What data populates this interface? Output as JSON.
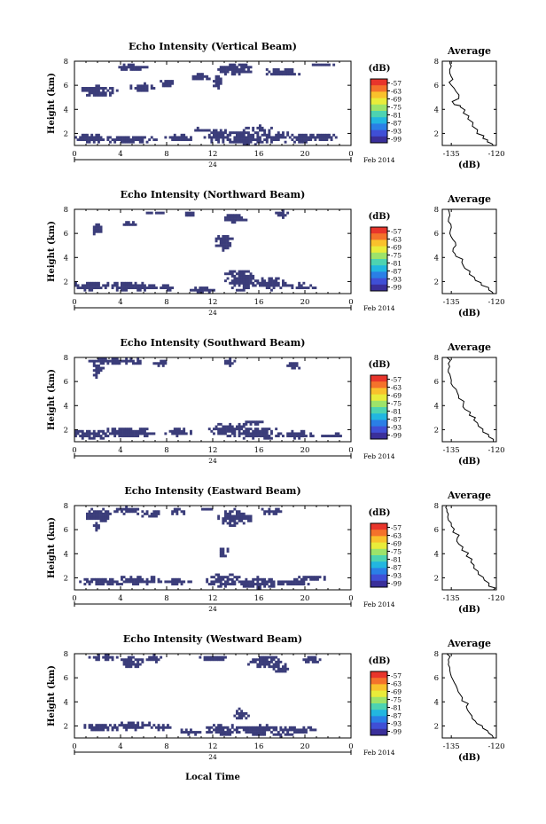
{
  "chart_data": {
    "type": "heatmap",
    "colorbar": {
      "unit": "(dB)",
      "ticks": [
        "-57",
        "-63",
        "-69",
        "-75",
        "-81",
        "-87",
        "-93",
        "-99"
      ],
      "colors": [
        "#e8352b",
        "#f4722b",
        "#f9c12c",
        "#e9ec3a",
        "#9de36a",
        "#4dd3b1",
        "#22b6e0",
        "#2a7fe6",
        "#3f4fd6",
        "#3a2f9a"
      ]
    },
    "fill_color": "#3b3d7a",
    "xticks": [
      "0",
      "4",
      "8",
      "12",
      "16",
      "20",
      "0"
    ],
    "xlim": [
      0,
      24
    ],
    "day_label": "24",
    "date_label": "Feb 2014",
    "xlabel": "Local Time",
    "ylabel": "Height (km)",
    "yticks": [
      "2",
      "4",
      "6",
      "8"
    ],
    "ylim": [
      1,
      8
    ],
    "avg_title": "Average",
    "avg_xlabel": "(dB)",
    "avg_xlim": [
      -138,
      -120
    ],
    "avg_ylim": [
      1,
      8
    ],
    "panels": [
      {
        "title": "Echo Intensity (Vertical Beam)",
        "avg_xticks": [
          "-135",
          "-120"
        ],
        "blobs": [
          [
            2,
            5.5,
            1.7,
            0.45
          ],
          [
            5,
            7.5,
            1.5,
            0.25
          ],
          [
            6,
            5.8,
            1.2,
            0.35
          ],
          [
            8,
            6.2,
            0.6,
            0.3
          ],
          [
            14,
            7.3,
            1.5,
            0.55
          ],
          [
            18,
            7.1,
            1.7,
            0.35
          ],
          [
            11,
            6.7,
            0.9,
            0.3
          ],
          [
            21.5,
            7.7,
            1.2,
            0.18
          ],
          [
            12.4,
            6.3,
            0.4,
            0.6
          ],
          [
            1.5,
            1.6,
            1.8,
            0.35
          ],
          [
            5,
            1.5,
            2.4,
            0.35
          ],
          [
            9,
            1.6,
            1.3,
            0.3
          ],
          [
            12.5,
            1.8,
            1.2,
            0.6
          ],
          [
            14.8,
            1.6,
            1.8,
            0.65
          ],
          [
            17.5,
            1.7,
            1.5,
            0.5
          ],
          [
            19.5,
            1.6,
            1.4,
            0.35
          ],
          [
            21.5,
            1.7,
            1.2,
            0.3
          ],
          [
            16,
            2.4,
            1.2,
            0.25
          ],
          [
            11,
            2.3,
            1,
            0.2
          ]
        ],
        "avg": [
          [
            -121,
            1.0
          ],
          [
            -123,
            1.3
          ],
          [
            -124.5,
            1.6
          ],
          [
            -126.5,
            2
          ],
          [
            -128,
            2.6
          ],
          [
            -129.5,
            3.2
          ],
          [
            -131,
            3.7
          ],
          [
            -132,
            4.2
          ],
          [
            -134,
            4.4
          ],
          [
            -132.5,
            4.9
          ],
          [
            -133.5,
            5.5
          ],
          [
            -135,
            6
          ],
          [
            -134.5,
            6.5
          ],
          [
            -135.5,
            7
          ],
          [
            -135,
            7.6
          ],
          [
            -135.5,
            8
          ]
        ]
      },
      {
        "title": "Echo Intensity (Northward Beam)",
        "avg_xticks": [
          "-135",
          "-120"
        ],
        "blobs": [
          [
            2,
            6.3,
            0.4,
            0.5
          ],
          [
            5,
            6.8,
            0.8,
            0.3
          ],
          [
            7,
            7.7,
            1.2,
            0.18
          ],
          [
            10,
            7.6,
            0.6,
            0.25
          ],
          [
            14,
            7.3,
            1,
            0.4
          ],
          [
            18,
            7.6,
            0.6,
            0.3
          ],
          [
            13,
            5.2,
            0.8,
            0.7
          ],
          [
            1.5,
            1.6,
            2.2,
            0.35
          ],
          [
            5,
            1.6,
            2.5,
            0.35
          ],
          [
            8,
            1.5,
            0.8,
            0.25
          ],
          [
            14.5,
            2.0,
            1.5,
            0.75
          ],
          [
            14.2,
            2.7,
            1.2,
            0.3
          ],
          [
            17,
            1.8,
            1.7,
            0.5
          ],
          [
            19.8,
            1.6,
            1.2,
            0.3
          ],
          [
            11,
            1.3,
            1.2,
            0.25
          ]
        ],
        "avg": [
          [
            -121,
            1.0
          ],
          [
            -122.5,
            1.3
          ],
          [
            -125,
            1.7
          ],
          [
            -127,
            2.1
          ],
          [
            -129,
            2.6
          ],
          [
            -130.5,
            3.1
          ],
          [
            -131.5,
            3.6
          ],
          [
            -133.5,
            4.1
          ],
          [
            -134.5,
            4.5
          ],
          [
            -133.5,
            5
          ],
          [
            -134.5,
            5.5
          ],
          [
            -135.5,
            6
          ],
          [
            -135,
            6.5
          ],
          [
            -136,
            7
          ],
          [
            -135.5,
            7.5
          ],
          [
            -136,
            8
          ]
        ]
      },
      {
        "title": "Echo Intensity (Southward Beam)",
        "avg_xticks": [
          "-135",
          "-120"
        ],
        "blobs": [
          [
            3,
            7.7,
            1.8,
            0.25
          ],
          [
            2,
            7,
            0.5,
            0.8
          ],
          [
            5,
            7.7,
            1.2,
            0.25
          ],
          [
            7.5,
            7.5,
            0.6,
            0.35
          ],
          [
            13.5,
            7.6,
            0.5,
            0.3
          ],
          [
            19,
            7.3,
            0.6,
            0.4
          ],
          [
            1.5,
            1.6,
            1.8,
            0.45
          ],
          [
            4.5,
            1.8,
            2.5,
            0.45
          ],
          [
            9,
            1.8,
            1.2,
            0.35
          ],
          [
            13.5,
            2.0,
            1.8,
            0.55
          ],
          [
            16,
            1.7,
            2.2,
            0.5
          ],
          [
            19.3,
            1.6,
            1.5,
            0.35
          ],
          [
            15.5,
            2.6,
            1.2,
            0.2
          ],
          [
            22.5,
            1.5,
            1.0,
            0.2
          ]
        ],
        "avg": [
          [
            -121,
            1.0
          ],
          [
            -122.5,
            1.4
          ],
          [
            -124.5,
            1.8
          ],
          [
            -126,
            2.3
          ],
          [
            -127.5,
            2.8
          ],
          [
            -129,
            3.2
          ],
          [
            -130.5,
            3.7
          ],
          [
            -131,
            4.1
          ],
          [
            -132.5,
            4.6
          ],
          [
            -133,
            5.1
          ],
          [
            -134.5,
            5.6
          ],
          [
            -135,
            6.1
          ],
          [
            -135.5,
            6.6
          ],
          [
            -136,
            7
          ],
          [
            -136,
            7.5
          ],
          [
            -136.5,
            8
          ]
        ]
      },
      {
        "title": "Echo Intensity (Eastward Beam)",
        "avg_xticks": [
          "-135",
          "-120"
        ],
        "blobs": [
          [
            2,
            7.2,
            1.2,
            0.6
          ],
          [
            4.5,
            7.6,
            1.2,
            0.3
          ],
          [
            6.5,
            7.3,
            1,
            0.35
          ],
          [
            9,
            7.5,
            0.8,
            0.25
          ],
          [
            14,
            7.0,
            1.5,
            0.7
          ],
          [
            17,
            7.5,
            1,
            0.3
          ],
          [
            11.5,
            7.7,
            0.6,
            0.25
          ],
          [
            2,
            6.3,
            0.3,
            0.4
          ],
          [
            13,
            4.1,
            0.5,
            0.4
          ],
          [
            2.5,
            1.7,
            2,
            0.35
          ],
          [
            5.5,
            1.8,
            2.3,
            0.35
          ],
          [
            9,
            1.7,
            1.2,
            0.25
          ],
          [
            13,
            1.8,
            1.5,
            0.6
          ],
          [
            15.8,
            1.6,
            2,
            0.5
          ],
          [
            19,
            1.6,
            1.5,
            0.3
          ],
          [
            20.5,
            2.0,
            1.5,
            0.2
          ]
        ],
        "avg": [
          [
            -121,
            1.0
          ],
          [
            -122.5,
            1.3
          ],
          [
            -124,
            1.8
          ],
          [
            -126,
            2.3
          ],
          [
            -127.5,
            2.8
          ],
          [
            -128.5,
            3.3
          ],
          [
            -130,
            3.8
          ],
          [
            -131.5,
            4.3
          ],
          [
            -132.5,
            4.8
          ],
          [
            -133,
            5.3
          ],
          [
            -134.5,
            5.8
          ],
          [
            -135,
            6.3
          ],
          [
            -136,
            6.8
          ],
          [
            -136,
            7.3
          ],
          [
            -136.5,
            7.7
          ],
          [
            -136.5,
            8
          ]
        ]
      },
      {
        "title": "Echo Intensity (Westward Beam)",
        "avg_xticks": [
          "-135",
          "-120"
        ],
        "blobs": [
          [
            2.5,
            7.7,
            1.2,
            0.25
          ],
          [
            5,
            7.3,
            1,
            0.5
          ],
          [
            7,
            7.6,
            0.8,
            0.3
          ],
          [
            12,
            7.6,
            1.2,
            0.25
          ],
          [
            16.5,
            7.3,
            1.5,
            0.55
          ],
          [
            18,
            6.8,
            0.8,
            0.4
          ],
          [
            20.5,
            7.5,
            0.8,
            0.3
          ],
          [
            14.5,
            2.9,
            0.6,
            0.55
          ],
          [
            2.3,
            1.9,
            1.8,
            0.35
          ],
          [
            5,
            2.0,
            2.2,
            0.35
          ],
          [
            7.5,
            1.9,
            0.8,
            0.3
          ],
          [
            10,
            1.5,
            1.2,
            0.25
          ],
          [
            13,
            1.7,
            1.7,
            0.45
          ],
          [
            16.2,
            1.7,
            2.2,
            0.45
          ],
          [
            19.5,
            1.7,
            1.4,
            0.35
          ],
          [
            18,
            1.3,
            1.3,
            0.2
          ]
        ],
        "avg": [
          [
            -121,
            1.0
          ],
          [
            -122.5,
            1.4
          ],
          [
            -124.5,
            1.8
          ],
          [
            -126.5,
            2.2
          ],
          [
            -128,
            2.6
          ],
          [
            -129,
            3.1
          ],
          [
            -130,
            3.6
          ],
          [
            -131.5,
            4.1
          ],
          [
            -132,
            4.6
          ],
          [
            -133,
            5.1
          ],
          [
            -134,
            5.6
          ],
          [
            -135,
            6.1
          ],
          [
            -135.5,
            6.6
          ],
          [
            -136,
            7.1
          ],
          [
            -136,
            7.5
          ],
          [
            -136.5,
            8
          ]
        ]
      }
    ]
  }
}
